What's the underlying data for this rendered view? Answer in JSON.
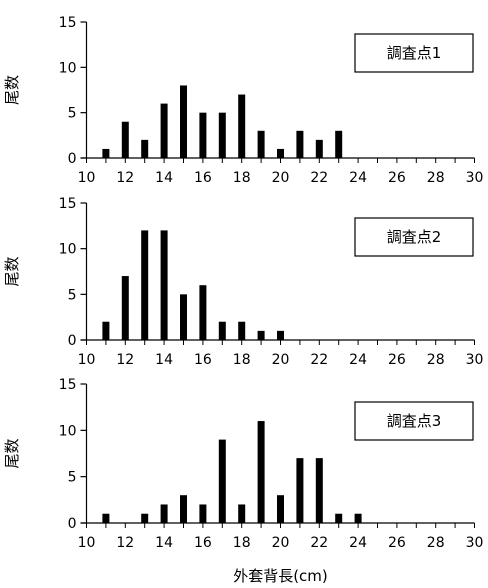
{
  "chart_data": [
    {
      "type": "bar",
      "title": "",
      "legend_label": "調査点1",
      "ylabel": "尾数",
      "xlabel": "",
      "categories": [
        10,
        11,
        12,
        13,
        14,
        15,
        16,
        17,
        18,
        19,
        20,
        21,
        22,
        23,
        24,
        25,
        26,
        27,
        28,
        29,
        30
      ],
      "values": [
        0,
        1,
        4,
        2,
        6,
        8,
        5,
        5,
        7,
        3,
        1,
        3,
        2,
        3,
        0,
        0,
        0,
        0,
        0,
        0,
        0
      ],
      "x_tick_labels": [
        "10",
        "12",
        "14",
        "16",
        "18",
        "20",
        "22",
        "24",
        "26",
        "28",
        "30"
      ],
      "y_tick_labels": [
        "0",
        "5",
        "10",
        "15"
      ],
      "ylim": [
        0,
        15
      ],
      "grid": false
    },
    {
      "type": "bar",
      "title": "",
      "legend_label": "調査点2",
      "ylabel": "尾数",
      "xlabel": "",
      "categories": [
        10,
        11,
        12,
        13,
        14,
        15,
        16,
        17,
        18,
        19,
        20,
        21,
        22,
        23,
        24,
        25,
        26,
        27,
        28,
        29,
        30
      ],
      "values": [
        0,
        2,
        7,
        12,
        12,
        5,
        6,
        2,
        2,
        1,
        1,
        0,
        0,
        0,
        0,
        0,
        0,
        0,
        0,
        0,
        0
      ],
      "x_tick_labels": [
        "10",
        "12",
        "14",
        "16",
        "18",
        "20",
        "22",
        "24",
        "26",
        "28",
        "30"
      ],
      "y_tick_labels": [
        "0",
        "5",
        "10",
        "15"
      ],
      "ylim": [
        0,
        15
      ],
      "grid": false
    },
    {
      "type": "bar",
      "title": "",
      "legend_label": "調査点3",
      "ylabel": "尾数",
      "xlabel": "外套背長(cm)",
      "categories": [
        10,
        11,
        12,
        13,
        14,
        15,
        16,
        17,
        18,
        19,
        20,
        21,
        22,
        23,
        24,
        25,
        26,
        27,
        28,
        29,
        30
      ],
      "values": [
        0,
        1,
        0,
        1,
        2,
        3,
        2,
        9,
        2,
        11,
        3,
        7,
        7,
        1,
        1,
        0,
        0,
        0,
        0,
        0,
        0
      ],
      "x_tick_labels": [
        "10",
        "12",
        "14",
        "16",
        "18",
        "20",
        "22",
        "24",
        "26",
        "28",
        "30"
      ],
      "y_tick_labels": [
        "0",
        "5",
        "10",
        "15"
      ],
      "ylim": [
        0,
        15
      ],
      "grid": false
    }
  ],
  "colors": {
    "bar": "#000000",
    "axis": "#000000",
    "background": "#ffffff"
  }
}
